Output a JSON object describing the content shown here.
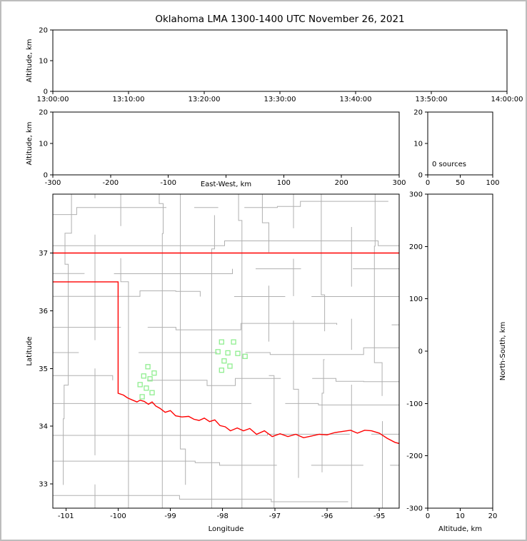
{
  "chart_data": {
    "type": "scatter",
    "title": "Oklahoma LMA 1300-1400 UTC November 26, 2021",
    "colors": {
      "state_border": "#ff0000",
      "county_lines": "#b0b0b0",
      "station_marker": "#90ee90",
      "axes": "#000000"
    },
    "panels": {
      "time_height": {
        "ylabel": "Altitude, km",
        "yticks": [
          0,
          10,
          20
        ],
        "ylim": [
          0,
          20
        ],
        "xticks": [
          "13:00:00",
          "13:10:00",
          "13:20:00",
          "13:30:00",
          "13:40:00",
          "13:50:00",
          "14:00:00"
        ],
        "points": []
      },
      "ew_height": {
        "ylabel": "Altitude, km",
        "xlabel": "East-West, km",
        "xticks": [
          -300,
          -200,
          -100,
          0,
          100,
          200,
          300
        ],
        "xlim": [
          -300,
          300
        ],
        "yticks": [
          0,
          10,
          20
        ],
        "ylim": [
          0,
          20
        ],
        "points": []
      },
      "histogram": {
        "annotation": "0 sources",
        "xticks": [
          0,
          50,
          100
        ],
        "xlim": [
          0,
          100
        ],
        "yticks": [
          0,
          10,
          20
        ],
        "ylim": [
          0,
          20
        ],
        "points": []
      },
      "plan_map": {
        "xlabel": "Longitude",
        "ylabel": "Latitude",
        "xticks": [
          -101,
          -100,
          -99,
          -98,
          -97,
          -96,
          -95
        ],
        "xlim": [
          -101.25,
          -94.62
        ],
        "yticks": [
          33,
          34,
          35,
          36,
          37
        ],
        "ylim": [
          32.58,
          38.02
        ],
        "stations": [
          [
            -98.02,
            35.46
          ],
          [
            -97.79,
            35.46
          ],
          [
            -98.09,
            35.29
          ],
          [
            -97.9,
            35.27
          ],
          [
            -97.71,
            35.26
          ],
          [
            -97.57,
            35.21
          ],
          [
            -97.97,
            35.13
          ],
          [
            -97.86,
            35.04
          ],
          [
            -98.02,
            34.97
          ],
          [
            -99.43,
            35.03
          ],
          [
            -99.31,
            34.92
          ],
          [
            -99.51,
            34.87
          ],
          [
            -99.39,
            34.82
          ],
          [
            -99.58,
            34.72
          ],
          [
            -99.46,
            34.66
          ],
          [
            -99.35,
            34.58
          ],
          [
            -99.54,
            34.51
          ]
        ],
        "state_border": [
          [
            [
              -101.25,
              37.0
            ],
            [
              -94.62,
              37.0
            ]
          ],
          [
            [
              -101.25,
              36.5
            ],
            [
              -100.0,
              36.5
            ],
            [
              -100.0,
              34.57
            ],
            [
              -99.9,
              34.54
            ],
            [
              -99.82,
              34.49
            ],
            [
              -99.72,
              34.45
            ],
            [
              -99.64,
              34.42
            ],
            [
              -99.58,
              34.45
            ],
            [
              -99.5,
              34.43
            ],
            [
              -99.42,
              34.38
            ],
            [
              -99.35,
              34.42
            ],
            [
              -99.28,
              34.35
            ],
            [
              -99.2,
              34.31
            ],
            [
              -99.1,
              34.24
            ],
            [
              -99.0,
              34.27
            ],
            [
              -98.9,
              34.18
            ],
            [
              -98.78,
              34.16
            ],
            [
              -98.65,
              34.17
            ],
            [
              -98.55,
              34.12
            ],
            [
              -98.45,
              34.1
            ],
            [
              -98.35,
              34.14
            ],
            [
              -98.25,
              34.08
            ],
            [
              -98.15,
              34.11
            ],
            [
              -98.05,
              34.01
            ],
            [
              -97.95,
              33.99
            ],
            [
              -97.85,
              33.92
            ],
            [
              -97.72,
              33.97
            ],
            [
              -97.6,
              33.92
            ],
            [
              -97.48,
              33.96
            ],
            [
              -97.35,
              33.86
            ],
            [
              -97.2,
              33.92
            ],
            [
              -97.05,
              33.82
            ],
            [
              -96.9,
              33.87
            ],
            [
              -96.75,
              33.82
            ],
            [
              -96.6,
              33.86
            ],
            [
              -96.45,
              33.8
            ],
            [
              -96.3,
              33.83
            ],
            [
              -96.15,
              33.86
            ],
            [
              -96.0,
              33.85
            ],
            [
              -95.85,
              33.89
            ],
            [
              -95.7,
              33.91
            ],
            [
              -95.55,
              33.93
            ],
            [
              -95.42,
              33.88
            ],
            [
              -95.28,
              33.93
            ],
            [
              -95.15,
              33.92
            ],
            [
              -95.0,
              33.88
            ],
            [
              -94.85,
              33.79
            ],
            [
              -94.7,
              33.72
            ],
            [
              -94.62,
              33.7
            ]
          ]
        ],
        "points": []
      },
      "height_ns": {
        "xlabel": "Altitude, km",
        "ylabel_right": "North-South, km",
        "xticks": [
          0,
          10,
          20
        ],
        "xlim": [
          0,
          20
        ],
        "yticks": [
          -300,
          -200,
          -100,
          0,
          100,
          200,
          300
        ],
        "ylim": [
          -300,
          300
        ],
        "points": []
      }
    }
  }
}
